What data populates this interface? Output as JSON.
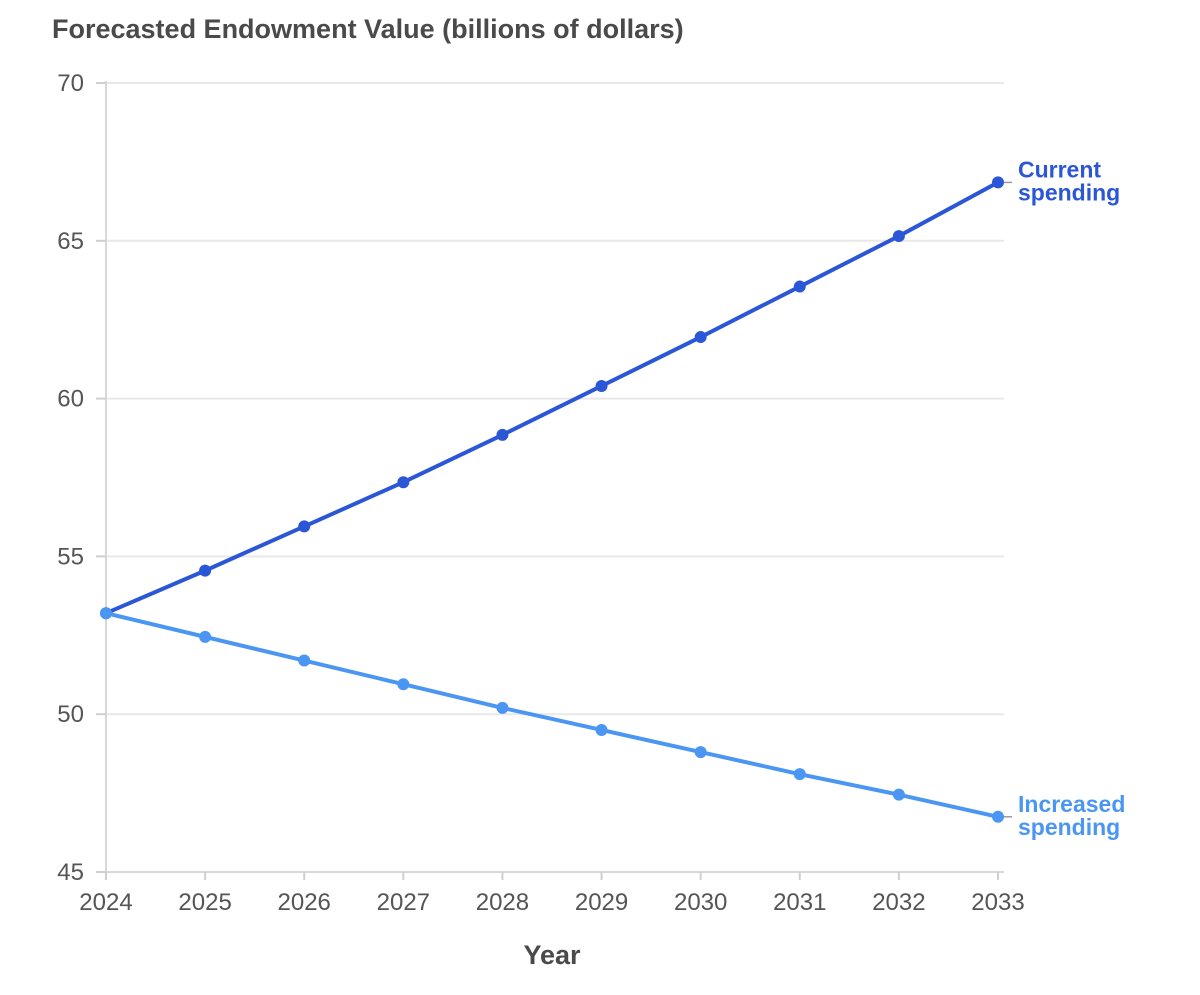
{
  "chart_data": {
    "type": "line",
    "title": "Forecasted Endowment Value (billions of dollars)",
    "xlabel": "Year",
    "ylabel": "",
    "x": [
      2024,
      2025,
      2026,
      2027,
      2028,
      2029,
      2030,
      2031,
      2032,
      2033
    ],
    "x_tick_labels": [
      "2024",
      "2025",
      "2026",
      "2027",
      "2028",
      "2029",
      "2030",
      "2031",
      "2032",
      "2033"
    ],
    "ylim": [
      45,
      70
    ],
    "y_ticks": [
      45,
      50,
      55,
      60,
      65,
      70
    ],
    "y_tick_labels": [
      "45",
      "50",
      "55",
      "60",
      "65",
      "70"
    ],
    "grid": true,
    "legend": "direct labels at line ends",
    "series": [
      {
        "name": "Current spending",
        "label_lines": [
          "Current",
          "spending"
        ],
        "color": "#2b57d6",
        "values": [
          53.2,
          54.55,
          55.95,
          57.35,
          58.85,
          60.4,
          61.95,
          63.55,
          65.15,
          66.85
        ]
      },
      {
        "name": "Increased spending",
        "label_lines": [
          "Increased",
          "spending"
        ],
        "color": "#4b96f2",
        "values": [
          53.2,
          52.45,
          51.7,
          50.95,
          50.2,
          49.5,
          48.8,
          48.1,
          47.45,
          46.75
        ]
      }
    ]
  }
}
